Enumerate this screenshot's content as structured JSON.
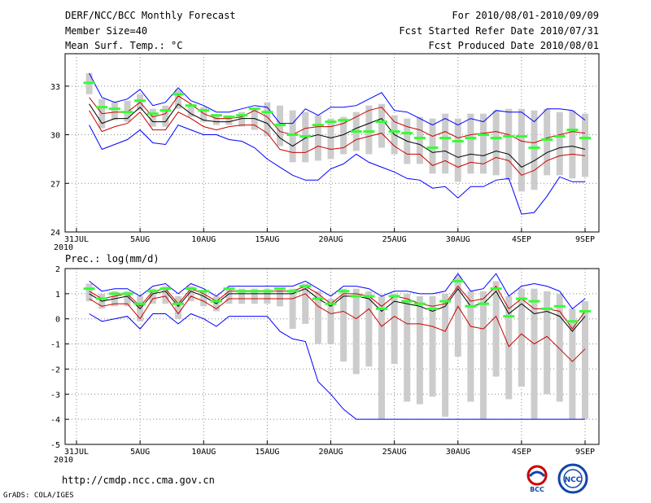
{
  "header": {
    "title": "DERF/NCC/BCC Monthly Forecast",
    "member_size": "Member Size=40",
    "period": "For 2010/08/01-2010/09/09",
    "fcst_started": "Fcst Started Refer Date 2010/07/31",
    "fcst_produced": "Fcst Produced Date 2010/08/01"
  },
  "footer": {
    "url": "http://cmdp.ncc.cma.gov.cn",
    "grads": "GrADS: COLA/IGES",
    "logo_left": "BCC",
    "logo_right": "NCC"
  },
  "chart_data": [
    {
      "type": "line",
      "title": "Mean Surf. Temp.: °C",
      "x_tick_labels": [
        "31JUL",
        "5AUG",
        "10AUG",
        "15AUG",
        "20AUG",
        "25AUG",
        "30AUG",
        "4SEP",
        "9SEP"
      ],
      "x_tick_days": [
        0,
        5,
        10,
        15,
        20,
        25,
        30,
        35,
        40
      ],
      "year_label": "2010",
      "ylim": [
        24,
        35
      ],
      "y_ticks": [
        24,
        27,
        30,
        33
      ],
      "colors": {
        "max": "#0000ff",
        "min": "#0000ff",
        "ens_mean": "#000000",
        "spread": "#cc0000",
        "obs": "#33ff33",
        "bar": "#cccccc"
      },
      "days": [
        1,
        2,
        3,
        4,
        5,
        6,
        7,
        8,
        9,
        10,
        11,
        12,
        13,
        14,
        15,
        16,
        17,
        18,
        19,
        20,
        21,
        22,
        23,
        24,
        25,
        26,
        27,
        28,
        29,
        30,
        31,
        32,
        33,
        34,
        35,
        36,
        37,
        38,
        39,
        40
      ],
      "series": [
        {
          "name": "max",
          "values": [
            33.8,
            32.3,
            32.0,
            32.2,
            32.8,
            31.8,
            32.0,
            32.9,
            32.1,
            31.8,
            31.4,
            31.4,
            31.6,
            31.8,
            31.7,
            30.7,
            30.7,
            31.6,
            31.2,
            31.7,
            31.7,
            31.8,
            32.2,
            32.6,
            31.5,
            31.4,
            31.0,
            30.6,
            31.0,
            30.6,
            31.0,
            30.8,
            31.5,
            31.4,
            31.4,
            30.8,
            31.6,
            31.6,
            31.5,
            30.9
          ]
        },
        {
          "name": "upper_spread",
          "values": [
            32.3,
            31.3,
            31.4,
            31.4,
            32.0,
            31.1,
            31.3,
            32.4,
            31.9,
            31.3,
            31.0,
            31.0,
            31.1,
            31.5,
            31.1,
            30.2,
            30.0,
            30.4,
            30.5,
            30.5,
            30.7,
            31.1,
            31.5,
            31.7,
            30.8,
            30.5,
            30.3,
            29.9,
            30.2,
            29.8,
            30.0,
            30.1,
            30.2,
            30.0,
            29.6,
            29.5,
            29.8,
            30.0,
            30.2,
            30.1
          ]
        },
        {
          "name": "ens_mean",
          "values": [
            31.9,
            30.7,
            31.0,
            31.0,
            31.7,
            30.8,
            30.8,
            31.9,
            31.3,
            30.9,
            30.8,
            30.8,
            31.0,
            31.0,
            30.7,
            29.8,
            29.3,
            29.8,
            30.0,
            29.8,
            30.0,
            30.4,
            30.7,
            31.0,
            30.0,
            29.6,
            29.4,
            28.9,
            29.0,
            28.6,
            28.8,
            28.7,
            29.0,
            28.8,
            28.0,
            28.4,
            28.9,
            29.2,
            29.3,
            29.1
          ]
        },
        {
          "name": "lower_spread",
          "values": [
            31.5,
            30.2,
            30.5,
            30.7,
            31.4,
            30.3,
            30.3,
            31.4,
            31.0,
            30.5,
            30.3,
            30.5,
            30.6,
            30.6,
            30.1,
            29.1,
            28.9,
            28.9,
            29.3,
            29.1,
            29.2,
            29.7,
            29.9,
            30.1,
            29.3,
            28.8,
            28.8,
            28.1,
            28.4,
            28.0,
            28.3,
            28.2,
            28.6,
            28.4,
            27.5,
            27.8,
            28.4,
            28.7,
            28.8,
            28.7
          ]
        },
        {
          "name": "min",
          "values": [
            30.6,
            29.1,
            29.4,
            29.7,
            30.3,
            29.5,
            29.4,
            30.6,
            30.3,
            30.0,
            30.0,
            29.7,
            29.6,
            29.2,
            28.5,
            28.0,
            27.5,
            27.2,
            27.2,
            27.9,
            28.2,
            28.8,
            28.3,
            28.0,
            27.7,
            27.3,
            27.2,
            26.7,
            26.8,
            26.1,
            26.8,
            26.8,
            27.2,
            27.3,
            25.1,
            25.2,
            26.2,
            27.4,
            27.1,
            27.1
          ]
        },
        {
          "name": "obs",
          "values": [
            33.2,
            31.7,
            31.6,
            31.4,
            32.1,
            31.3,
            31.5,
            32.5,
            31.8,
            31.5,
            31.2,
            31.1,
            31.2,
            31.6,
            31.4,
            30.6,
            30.0,
            29.9,
            30.6,
            30.8,
            30.9,
            30.2,
            30.2,
            30.8,
            30.2,
            30.1,
            29.8,
            29.2,
            29.8,
            29.6,
            29.8,
            30.0,
            29.8,
            29.9,
            29.9,
            29.2,
            29.7,
            29.9,
            30.3,
            29.8
          ]
        },
        {
          "name": "bar_high",
          "values": [
            33.8,
            32.2,
            32.0,
            32.1,
            32.5,
            31.6,
            31.8,
            32.8,
            31.9,
            31.7,
            31.2,
            31.2,
            31.4,
            31.6,
            32.0,
            31.8,
            31.5,
            31.4,
            31.2,
            31.0,
            31.1,
            31.4,
            31.8,
            31.9,
            31.2,
            31.0,
            31.1,
            31.0,
            31.3,
            31.0,
            31.3,
            31.3,
            31.5,
            31.6,
            31.6,
            31.5,
            31.6,
            31.4,
            31.5,
            31.3
          ]
        },
        {
          "name": "bar_low",
          "values": [
            32.5,
            30.4,
            30.9,
            30.8,
            31.5,
            30.5,
            30.5,
            31.6,
            31.1,
            30.8,
            30.6,
            30.6,
            30.5,
            30.3,
            29.9,
            29.3,
            28.3,
            28.3,
            28.4,
            28.5,
            28.8,
            29.0,
            28.8,
            29.2,
            28.8,
            28.2,
            28.2,
            27.6,
            27.6,
            27.1,
            27.6,
            27.6,
            27.5,
            27.2,
            26.5,
            26.6,
            27.5,
            27.5,
            27.3,
            27.4
          ]
        }
      ]
    },
    {
      "type": "line",
      "title": "Prec.: log(mm/d)",
      "x_tick_labels": [
        "31JUL",
        "5AUG",
        "10AUG",
        "15AUG",
        "20AUG",
        "25AUG",
        "30AUG",
        "4SEP",
        "9SEP"
      ],
      "x_tick_days": [
        0,
        5,
        10,
        15,
        20,
        25,
        30,
        35,
        40
      ],
      "year_label": "2010",
      "ylim": [
        -5,
        2
      ],
      "y_ticks": [
        -5,
        -4,
        -3,
        -2,
        -1,
        0,
        1,
        2
      ],
      "days": [
        1,
        2,
        3,
        4,
        5,
        6,
        7,
        8,
        9,
        10,
        11,
        12,
        13,
        14,
        15,
        16,
        17,
        18,
        19,
        20,
        21,
        22,
        23,
        24,
        25,
        26,
        27,
        28,
        29,
        30,
        31,
        32,
        33,
        34,
        35,
        36,
        37,
        38,
        39,
        40
      ],
      "series": [
        {
          "name": "max",
          "values": [
            1.5,
            1.1,
            1.2,
            1.2,
            0.9,
            1.3,
            1.4,
            1.0,
            1.4,
            1.2,
            0.9,
            1.3,
            1.3,
            1.3,
            1.3,
            1.3,
            1.3,
            1.5,
            1.2,
            0.9,
            1.3,
            1.3,
            1.2,
            0.9,
            1.1,
            1.1,
            1.0,
            1.0,
            1.1,
            1.8,
            1.1,
            1.2,
            1.8,
            0.9,
            1.3,
            1.4,
            1.3,
            1.1,
            0.4,
            0.8
          ]
        },
        {
          "name": "upper_spread",
          "values": [
            1.1,
            0.8,
            0.9,
            1.0,
            0.5,
            1.1,
            1.2,
            0.6,
            1.2,
            1.0,
            0.7,
            1.1,
            1.1,
            1.1,
            1.1,
            1.1,
            1.1,
            1.3,
            1.0,
            0.6,
            1.0,
            1.0,
            0.9,
            0.5,
            0.9,
            0.8,
            0.6,
            0.5,
            0.6,
            1.3,
            0.7,
            0.8,
            1.3,
            0.4,
            0.8,
            0.4,
            0.4,
            0.3,
            -0.4,
            0.3
          ]
        },
        {
          "name": "ens_mean",
          "values": [
            1.0,
            0.7,
            0.8,
            0.9,
            0.4,
            1.0,
            1.1,
            0.5,
            1.1,
            0.9,
            0.6,
            1.0,
            1.0,
            1.0,
            1.0,
            1.0,
            1.0,
            1.2,
            0.8,
            0.5,
            0.9,
            0.9,
            0.8,
            0.3,
            0.7,
            0.6,
            0.5,
            0.3,
            0.5,
            1.2,
            0.5,
            0.6,
            1.1,
            0.2,
            0.6,
            0.2,
            0.3,
            0.1,
            -0.5,
            0.1
          ]
        },
        {
          "name": "lower_spread",
          "values": [
            0.8,
            0.5,
            0.6,
            0.6,
            0.0,
            0.8,
            0.9,
            0.2,
            0.9,
            0.7,
            0.4,
            0.8,
            0.8,
            0.8,
            0.8,
            0.8,
            0.8,
            1.0,
            0.5,
            0.2,
            0.3,
            0.0,
            0.4,
            -0.3,
            0.1,
            -0.2,
            -0.2,
            -0.3,
            -0.5,
            0.5,
            -0.3,
            -0.4,
            0.1,
            -1.1,
            -0.6,
            -1.0,
            -0.7,
            -1.2,
            -1.7,
            -1.2
          ]
        },
        {
          "name": "min",
          "values": [
            0.2,
            -0.1,
            0.0,
            0.1,
            -0.4,
            0.2,
            0.2,
            -0.2,
            0.2,
            0.0,
            -0.3,
            0.1,
            0.1,
            0.1,
            0.1,
            -0.5,
            -0.8,
            -0.9,
            -2.5,
            -3.0,
            -3.6,
            -4.0,
            -4.0,
            -4.0,
            -4.0,
            -4.0,
            -4.0,
            -4.0,
            -4.0,
            -4.0,
            -4.0,
            -4.0,
            -4.0,
            -4.0,
            -4.0,
            -4.0,
            -4.0,
            -4.0,
            -4.0,
            -4.0
          ]
        },
        {
          "name": "obs",
          "values": [
            1.2,
            0.8,
            1.0,
            1.0,
            0.6,
            1.1,
            1.2,
            0.6,
            1.2,
            1.1,
            0.7,
            1.2,
            1.1,
            1.1,
            1.1,
            1.2,
            1.1,
            1.3,
            0.8,
            0.6,
            1.1,
            0.9,
            0.9,
            0.4,
            0.9,
            0.7,
            0.6,
            0.4,
            0.7,
            1.5,
            0.5,
            0.6,
            1.2,
            0.1,
            0.8,
            0.7,
            0.4,
            0.5,
            -0.1,
            0.3
          ]
        },
        {
          "name": "bar_high",
          "values": [
            1.4,
            1.0,
            1.1,
            1.1,
            0.9,
            1.2,
            1.3,
            0.9,
            1.3,
            1.1,
            0.9,
            1.2,
            1.2,
            1.2,
            1.2,
            1.2,
            1.2,
            1.4,
            1.1,
            0.8,
            1.2,
            1.2,
            1.1,
            0.9,
            1.0,
            1.0,
            0.9,
            0.9,
            1.0,
            1.7,
            1.1,
            1.1,
            1.5,
            0.9,
            1.2,
            1.2,
            1.1,
            1.0,
            0.4,
            0.7
          ]
        },
        {
          "name": "bar_low",
          "values": [
            0.7,
            0.4,
            0.5,
            0.5,
            -0.1,
            0.6,
            0.6,
            0.0,
            0.7,
            0.5,
            0.3,
            0.6,
            0.6,
            0.6,
            0.6,
            0.5,
            -0.4,
            -0.2,
            -1.0,
            -1.0,
            -1.7,
            -2.2,
            -1.9,
            -4.0,
            -1.8,
            -3.3,
            -3.4,
            -3.1,
            -3.9,
            -1.5,
            -3.3,
            -4.0,
            -2.3,
            -3.2,
            -2.7,
            -4.0,
            -3.0,
            -3.3,
            -4.0,
            -4.0
          ]
        }
      ]
    }
  ]
}
